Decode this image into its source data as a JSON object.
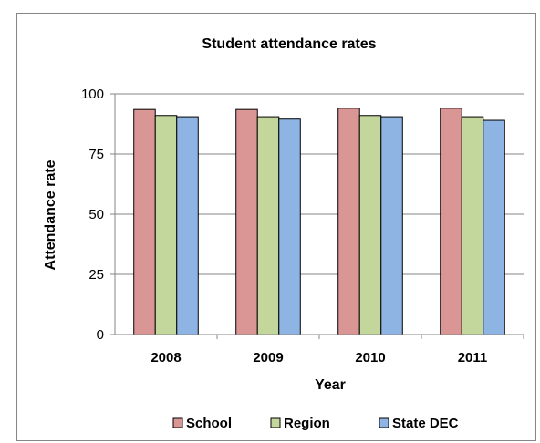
{
  "chart_data": {
    "type": "bar",
    "title": "Student attendance rates",
    "xlabel": "Year",
    "ylabel": "Attendance rate",
    "categories": [
      "2008",
      "2009",
      "2010",
      "2011"
    ],
    "series": [
      {
        "name": "School",
        "values": [
          93.5,
          93.5,
          94,
          94
        ],
        "color": "#d99694"
      },
      {
        "name": "Region",
        "values": [
          91,
          90.5,
          91,
          90.5
        ],
        "color": "#c3d69b"
      },
      {
        "name": "State DEC",
        "values": [
          90.5,
          89.5,
          90.5,
          89
        ],
        "color": "#8eb4e3"
      }
    ],
    "yticks": [
      "0",
      "25",
      "50",
      "75",
      "100"
    ],
    "ylim": [
      0,
      100
    ],
    "grid": true,
    "legend_position": "bottom"
  }
}
